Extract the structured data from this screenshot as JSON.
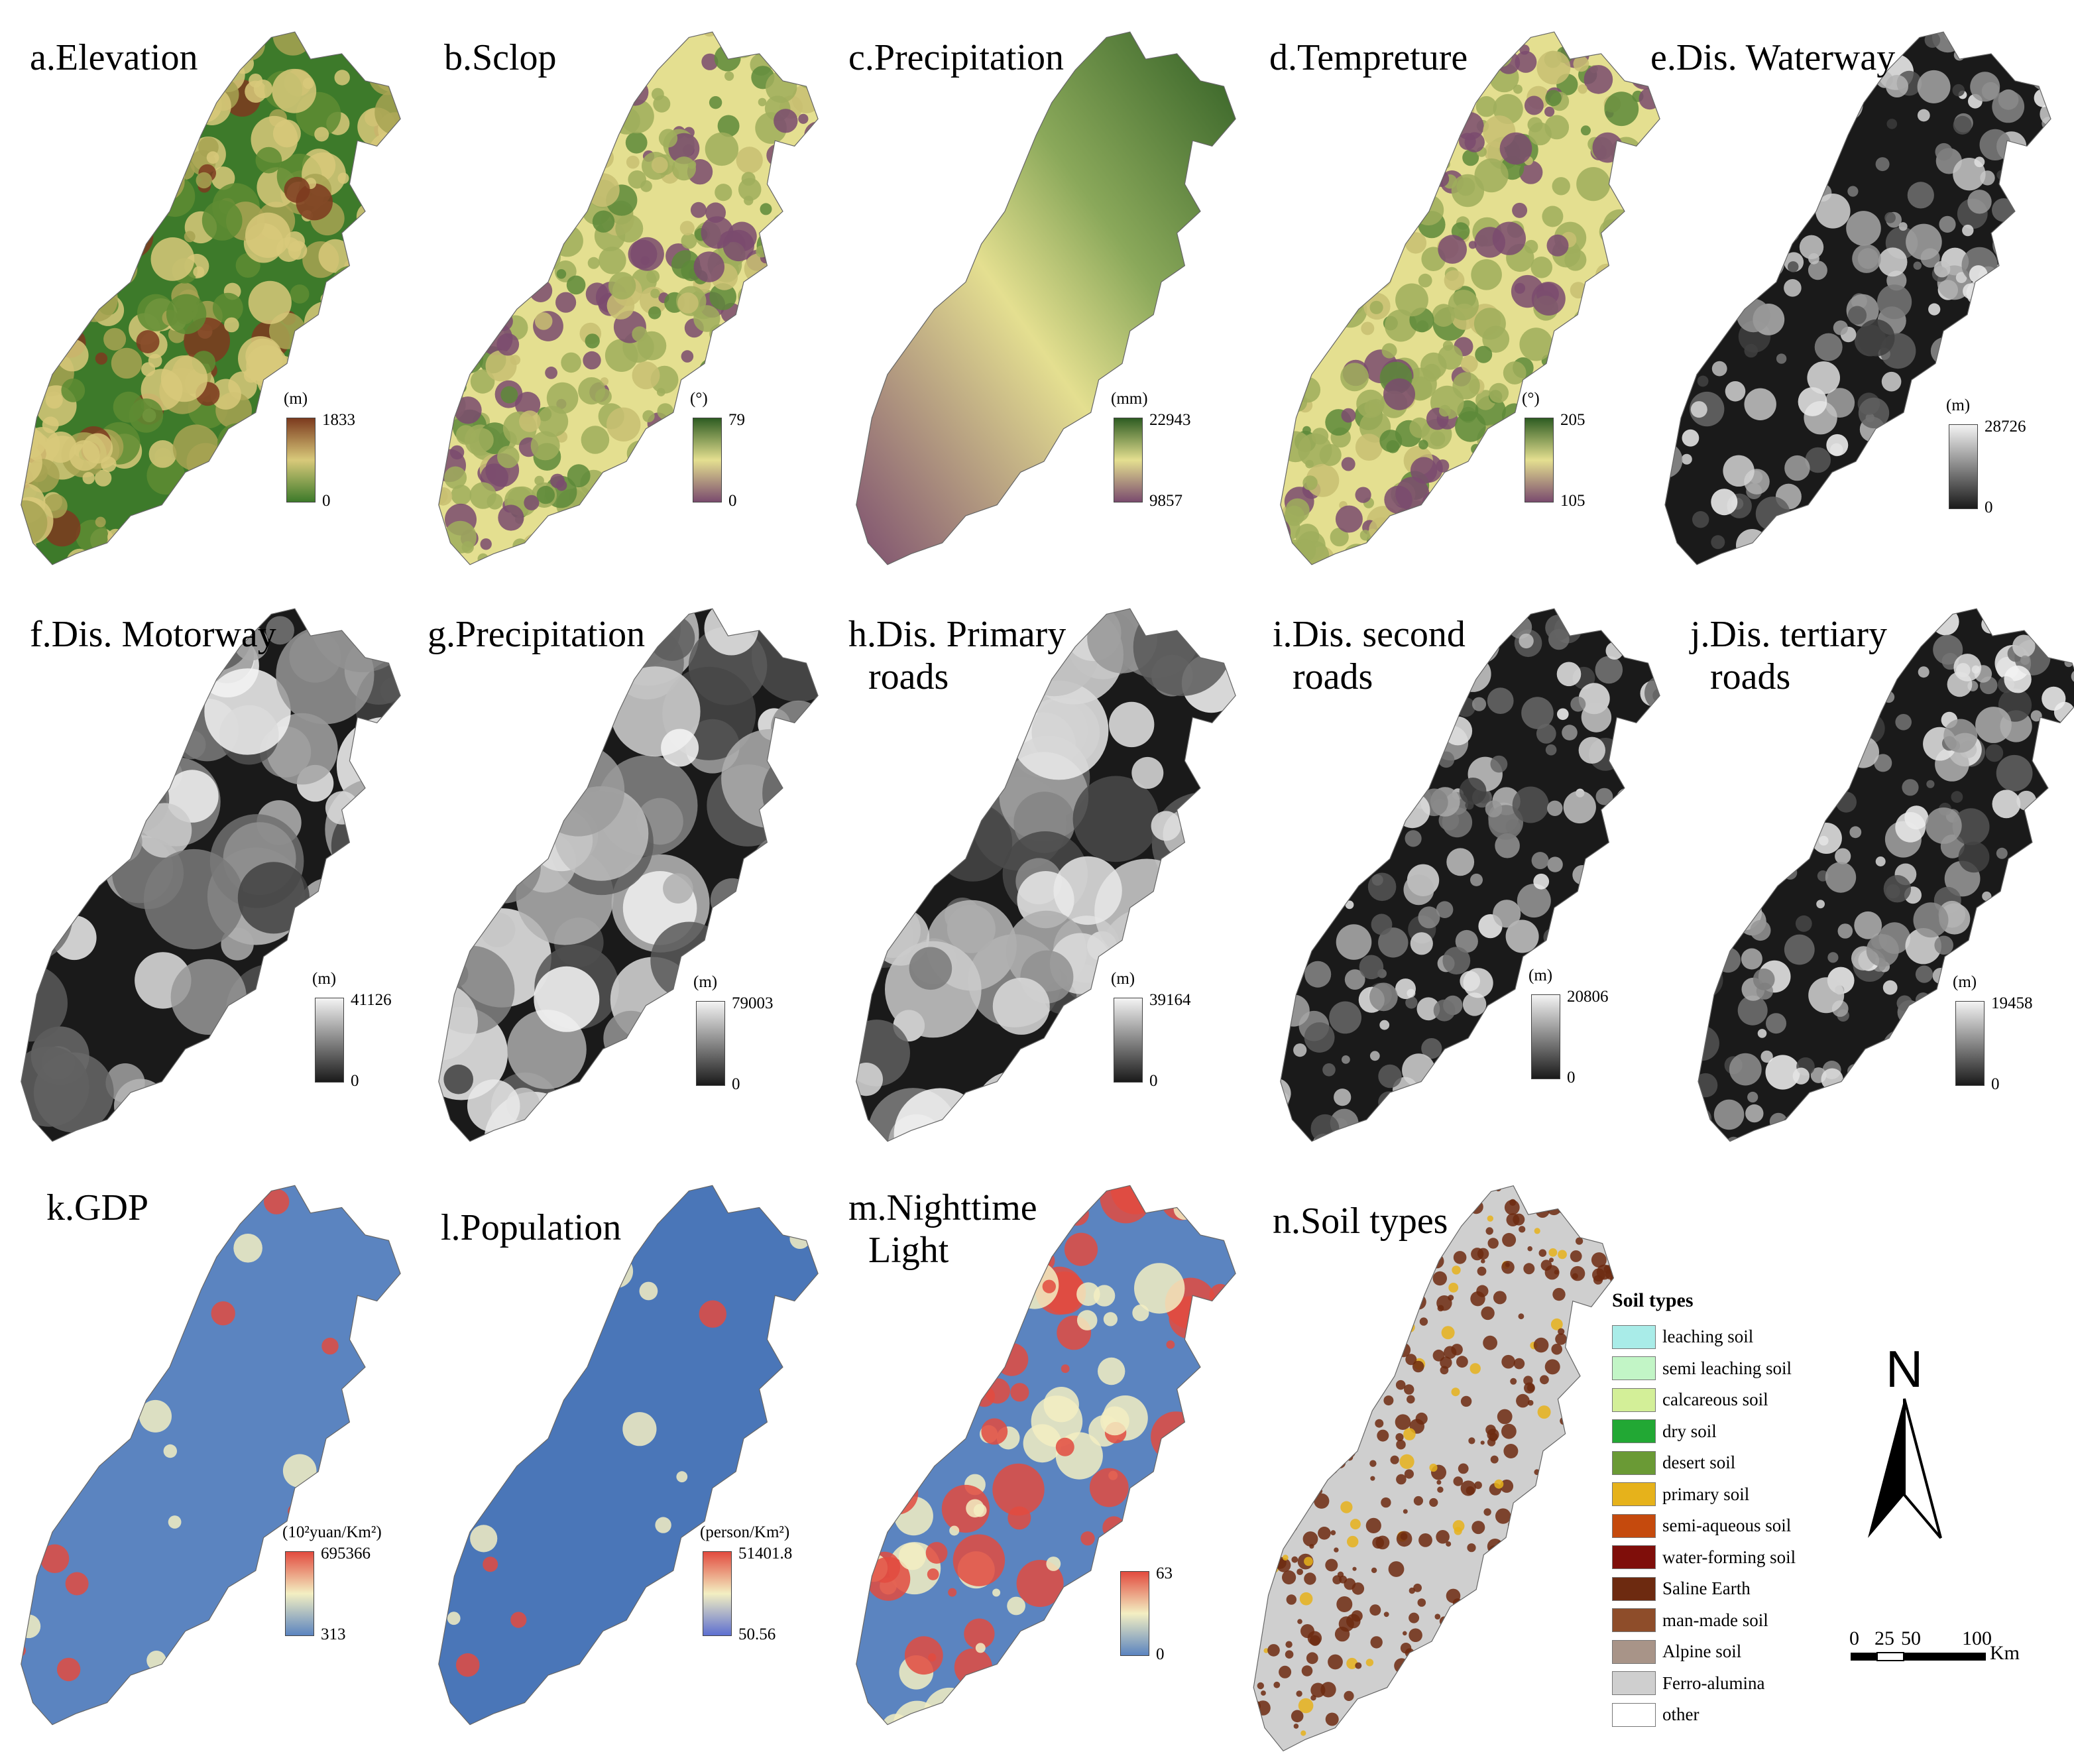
{
  "panels": [
    {
      "id": "a",
      "title": "a.Elevation",
      "unit": "(m)",
      "max": "1833",
      "min": "0",
      "ramp": "elev"
    },
    {
      "id": "b",
      "title": "b.Sclop",
      "unit": "(°)",
      "max": "79",
      "min": "0",
      "ramp": "slope"
    },
    {
      "id": "c",
      "title": "c.Precipitation",
      "unit": "(mm)",
      "max": "22943",
      "min": "9857",
      "ramp": "slope"
    },
    {
      "id": "d",
      "title": "d.Tempreture",
      "unit": "(°)",
      "max": "205",
      "min": "105",
      "ramp": "slope"
    },
    {
      "id": "e",
      "title": "e.Dis. Waterway",
      "unit": "(m)",
      "max": "28726",
      "min": "0",
      "ramp": "gray"
    },
    {
      "id": "f",
      "title": "f.Dis. Motorway",
      "unit": "(m)",
      "max": "41126",
      "min": "0",
      "ramp": "gray"
    },
    {
      "id": "g",
      "title": "g.Precipitation",
      "unit": "(m)",
      "max": "79003",
      "min": "0",
      "ramp": "gray"
    },
    {
      "id": "h",
      "title_line1": "h.Dis. Primary",
      "title_line2": "roads",
      "unit": "(m)",
      "max": "39164",
      "min": "0",
      "ramp": "gray"
    },
    {
      "id": "i",
      "title_line1": "i.Dis. second",
      "title_line2": "roads",
      "unit": "(m)",
      "max": "20806",
      "min": "0",
      "ramp": "gray"
    },
    {
      "id": "j",
      "title_line1": "j.Dis. tertiary",
      "title_line2": "roads",
      "unit": "(m)",
      "max": "19458",
      "min": "0",
      "ramp": "gray"
    },
    {
      "id": "k",
      "title": "k.GDP",
      "unit": "(10²yuan/Km²)",
      "max": "695366",
      "min": "313",
      "ramp": "div"
    },
    {
      "id": "l",
      "title": "l.Population",
      "unit": "(person/Km²)",
      "max": "51401.8",
      "min": "50.56",
      "ramp": "div2"
    },
    {
      "id": "m",
      "title_line1": "m.Nighttime",
      "title_line2": "Light",
      "unit": "",
      "max": "63",
      "min": "0",
      "ramp": "div"
    },
    {
      "id": "n",
      "title": "n.Soil types"
    }
  ],
  "soil_legend": {
    "title": "Soil types",
    "items": [
      {
        "label": "leaching soil",
        "color": "#a9ece8"
      },
      {
        "label": "semi leaching soil",
        "color": "#c2f5c6"
      },
      {
        "label": "calcareous soil",
        "color": "#d3ef98"
      },
      {
        "label": "dry soil",
        "color": "#22a834"
      },
      {
        "label": "desert soil",
        "color": "#6a9a35"
      },
      {
        "label": "primary soil",
        "color": "#e6b21b"
      },
      {
        "label": "semi-aqueous soil",
        "color": "#c54a0d"
      },
      {
        "label": "water-forming soil",
        "color": "#7f0e0a"
      },
      {
        "label": "Saline Earth",
        "color": "#6d2a10"
      },
      {
        "label": "man-made soil",
        "color": "#8e4d2a"
      },
      {
        "label": "Alpine soil",
        "color": "#a89488"
      },
      {
        "label": "Ferro-alumina",
        "color": "#cfcfcf"
      },
      {
        "label": "other",
        "color": "#ffffff"
      }
    ]
  },
  "north_arrow": {
    "label": "N"
  },
  "scale_bar": {
    "ticks": [
      "0",
      "25",
      "50",
      "100"
    ],
    "unit": "Km"
  },
  "colors": {
    "elev_low": "#3d7a2a",
    "elev_mid": "#d8c97a",
    "elev_high": "#7c3a1e",
    "slope_low": "#7a4b6e",
    "slope_mid": "#e4df90",
    "slope_high": "#2e5c22",
    "gray_low": "#1a1a1a",
    "gray_high": "#f4f4f4",
    "div_low": "#5b84c0",
    "div_mid": "#f3efc2",
    "div_high": "#e24b3f",
    "soil_base": "#cfcfcf",
    "soil_dark": "#6d2a10",
    "soil_gold": "#e6b21b"
  }
}
